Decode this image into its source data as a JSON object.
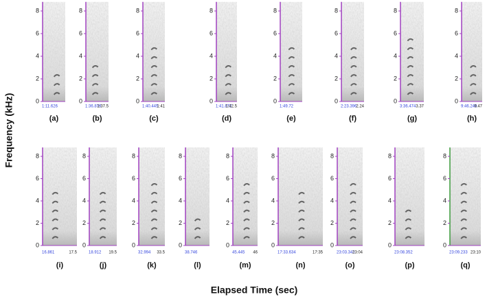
{
  "figure": {
    "y_axis_label": "Frequency (kHz)",
    "x_axis_label": "Elapsed Time (sec)",
    "ylim": [
      0,
      8.8
    ],
    "yticks": [
      0,
      2,
      4,
      6,
      8
    ],
    "panels": [
      {
        "label": "(a)",
        "start": "1:11.626"
      },
      {
        "label": "(b)",
        "start": "1:36.876",
        "end": "1:37.5"
      },
      {
        "label": "(c)",
        "start": "1:40.445",
        "end": "1:41"
      },
      {
        "label": "(d)",
        "start": "1:41.872",
        "end": "1:42.5"
      },
      {
        "label": "(e)",
        "start": "1:49.72"
      },
      {
        "label": "(f)",
        "start": "2:23.396",
        "end": "2.24"
      },
      {
        "label": "(g)",
        "start": "3:36.474",
        "end": "3.37"
      },
      {
        "label": "(h)",
        "start": "9:46.248",
        "end": "9.47"
      },
      {
        "label": "(i)",
        "start": "16.861",
        "end": "17.5"
      },
      {
        "label": "(j)",
        "start": "18.912",
        "end": "19.5"
      },
      {
        "label": "(k)",
        "start": "32.994",
        "end": "33.5"
      },
      {
        "label": "(l)",
        "start": "38.746"
      },
      {
        "label": "(m)",
        "start": "45.445",
        "end": "46"
      },
      {
        "label": "(n)",
        "start": "17:33.634",
        "end": "17:35"
      },
      {
        "label": "(o)",
        "start": "23:03.341",
        "end": "23:04"
      },
      {
        "label": "(p)",
        "start": "23:08.352"
      },
      {
        "label": "(q)",
        "start": "23:09.233",
        "end": "23:10"
      }
    ]
  }
}
